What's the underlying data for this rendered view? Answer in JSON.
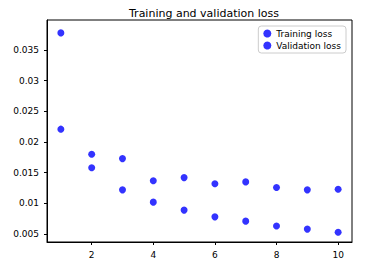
{
  "chart_data": {
    "type": "scatter",
    "title": "Training and validation loss",
    "x": [
      1,
      2,
      3,
      4,
      5,
      6,
      7,
      8,
      9,
      10
    ],
    "series": [
      {
        "name": "Training loss",
        "color": "#0000ff",
        "marker": "circle",
        "values": [
          0.0378,
          0.0158,
          0.0122,
          0.0102,
          0.0089,
          0.0078,
          0.0071,
          0.0063,
          0.0058,
          0.0053
        ]
      },
      {
        "name": "Validation loss",
        "color": "#0000ff",
        "marker": "circle",
        "values": [
          0.0221,
          0.018,
          0.0173,
          0.0137,
          0.0142,
          0.0132,
          0.0135,
          0.0126,
          0.0122,
          0.0123
        ]
      }
    ],
    "xlim": [
      0.55,
      10.45
    ],
    "xticks": [
      2,
      4,
      6,
      8,
      10
    ],
    "ylim": [
      0.0037,
      0.0399
    ],
    "yticks": [
      0.005,
      0.01,
      0.015,
      0.02,
      0.025,
      0.03,
      0.035
    ],
    "grid": false,
    "legend": "top-right"
  }
}
